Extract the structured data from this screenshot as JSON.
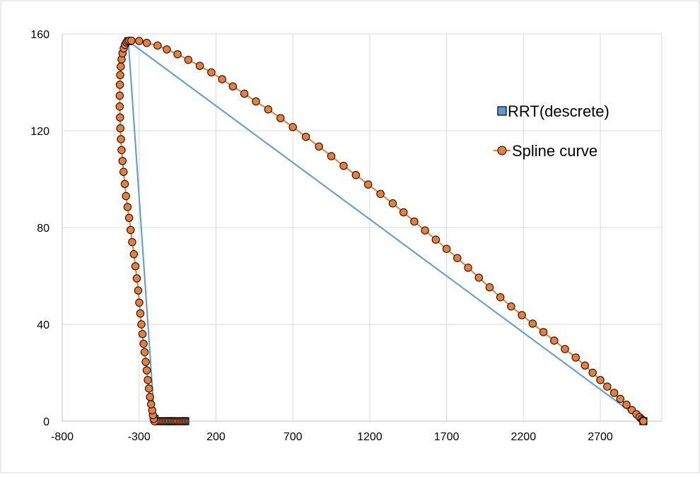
{
  "chart_data": {
    "type": "scatter",
    "title": "",
    "xlabel": "",
    "ylabel": "",
    "xlim": [
      -800,
      3100
    ],
    "ylim": [
      0,
      160
    ],
    "x_ticks": [
      -800,
      -300,
      200,
      700,
      1200,
      1700,
      2200,
      2700
    ],
    "y_ticks": [
      0,
      40,
      80,
      120,
      160
    ],
    "grid": true,
    "legend_position": "right",
    "series": [
      {
        "name": "RRT(descrete)",
        "color": "#5b9bd5",
        "marker": "square",
        "marker_fill": "#5b9bd5",
        "points": [
          [
            0,
            0
          ],
          [
            -100,
            0
          ],
          [
            -200,
            1
          ],
          [
            -370,
            157
          ],
          [
            2980,
            0
          ]
        ]
      },
      {
        "name": "Spline curve",
        "color": "#ed7d31",
        "marker": "circle",
        "marker_fill": "#ed7d31",
        "marker_edge": "#000000",
        "points": [
          [
            0,
            0
          ],
          [
            -10,
            0
          ],
          [
            -20,
            0
          ],
          [
            -30,
            0
          ],
          [
            -40,
            0
          ],
          [
            -50,
            0
          ],
          [
            -60,
            0
          ],
          [
            -70,
            0
          ],
          [
            -80,
            0
          ],
          [
            -90,
            0
          ],
          [
            -100,
            0
          ],
          [
            -110,
            0
          ],
          [
            -120,
            0
          ],
          [
            -130,
            0
          ],
          [
            -140,
            0
          ],
          [
            -150,
            0
          ],
          [
            -160,
            0
          ],
          [
            -170,
            0
          ],
          [
            -180,
            0
          ],
          [
            -190,
            0
          ],
          [
            -200,
            0
          ],
          [
            -205,
            1
          ],
          [
            -210,
            2.5
          ],
          [
            -215,
            4.5
          ],
          [
            -222,
            7
          ],
          [
            -229,
            10
          ],
          [
            -236,
            13.5
          ],
          [
            -243,
            17
          ],
          [
            -250,
            21
          ],
          [
            -257,
            24.5
          ],
          [
            -264,
            28.5
          ],
          [
            -271,
            32
          ],
          [
            -278,
            36
          ],
          [
            -285,
            40
          ],
          [
            -292,
            44.5
          ],
          [
            -299,
            49
          ],
          [
            -306,
            54
          ],
          [
            -315,
            59
          ],
          [
            -324,
            64
          ],
          [
            -334,
            69
          ],
          [
            -345,
            74
          ],
          [
            -355,
            79
          ],
          [
            -365,
            84
          ],
          [
            -375,
            88.5
          ],
          [
            -385,
            93
          ],
          [
            -393,
            98
          ],
          [
            -401,
            103
          ],
          [
            -408,
            107.5
          ],
          [
            -414,
            112
          ],
          [
            -418,
            116.5
          ],
          [
            -422,
            121
          ],
          [
            -424,
            125.5
          ],
          [
            -426,
            130
          ],
          [
            -426,
            134.5
          ],
          [
            -425,
            139
          ],
          [
            -423,
            143
          ],
          [
            -419,
            146.5
          ],
          [
            -414,
            149.5
          ],
          [
            -408,
            152
          ],
          [
            -400,
            154
          ],
          [
            -392,
            155.5
          ],
          [
            -383,
            156.5
          ],
          [
            -374,
            157
          ],
          [
            -364,
            157.2
          ],
          [
            -350,
            157.2
          ],
          [
            -300,
            157.1
          ],
          [
            -250,
            156.3
          ],
          [
            -180,
            155.2
          ],
          [
            -120,
            153.6
          ],
          [
            -50,
            151.6
          ],
          [
            20,
            149.3
          ],
          [
            95,
            146.8
          ],
          [
            170,
            144.1
          ],
          [
            240,
            141.3
          ],
          [
            310,
            138.3
          ],
          [
            385,
            135.3
          ],
          [
            460,
            132.1
          ],
          [
            540,
            128.8
          ],
          [
            620,
            125.2
          ],
          [
            700,
            121.5
          ],
          [
            785,
            117.5
          ],
          [
            870,
            113.5
          ],
          [
            950,
            109.5
          ],
          [
            1030,
            105.5
          ],
          [
            1110,
            101.7
          ],
          [
            1190,
            97.8
          ],
          [
            1270,
            93.9
          ],
          [
            1350,
            90.0
          ],
          [
            1420,
            86.3
          ],
          [
            1490,
            82.5
          ],
          [
            1560,
            78.8
          ],
          [
            1630,
            75.0
          ],
          [
            1700,
            71.2
          ],
          [
            1770,
            67.4
          ],
          [
            1840,
            63.4
          ],
          [
            1910,
            59.3
          ],
          [
            1980,
            55.3
          ],
          [
            2050,
            51.2
          ],
          [
            2120,
            47.4
          ],
          [
            2190,
            43.8
          ],
          [
            2260,
            40.3
          ],
          [
            2330,
            36.8
          ],
          [
            2400,
            33.3
          ],
          [
            2470,
            29.8
          ],
          [
            2540,
            26.3
          ],
          [
            2600,
            23.0
          ],
          [
            2650,
            20.0
          ],
          [
            2700,
            17.0
          ],
          [
            2745,
            14.3
          ],
          [
            2790,
            11.7
          ],
          [
            2830,
            9.2
          ],
          [
            2870,
            6.8
          ],
          [
            2905,
            4.6
          ],
          [
            2935,
            2.9
          ],
          [
            2955,
            1.7
          ],
          [
            2968,
            0.9
          ],
          [
            2976,
            0.3
          ],
          [
            2980,
            0
          ]
        ]
      }
    ]
  }
}
